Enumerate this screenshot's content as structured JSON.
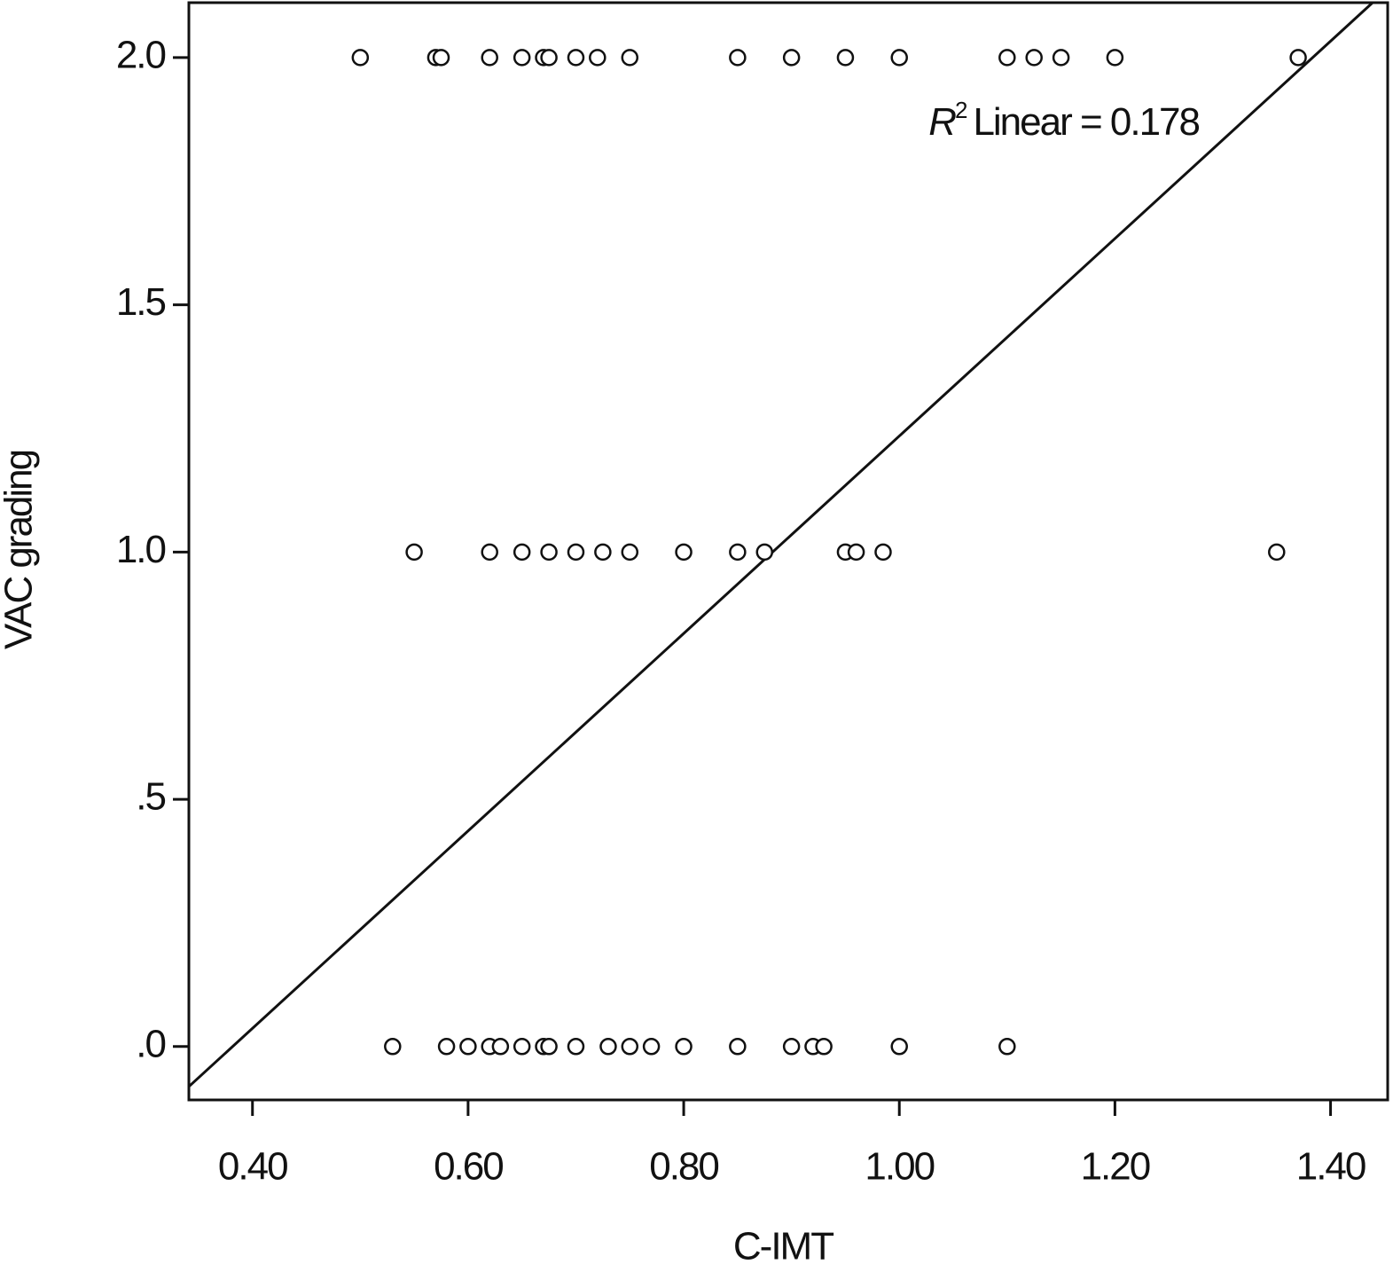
{
  "chart_data": {
    "type": "scatter",
    "x_label": "C-IMT",
    "y_label": "VAC grading",
    "annotation": {
      "symbol": "R",
      "superscript": "2",
      "text": "Linear = 0.178"
    },
    "color": "#111111",
    "grid": false,
    "xlim": [
      0.341,
      1.453
    ],
    "ylim": [
      -0.108,
      2.111
    ],
    "xticks": [
      {
        "value": 0.4,
        "label": "0.40"
      },
      {
        "value": 0.6,
        "label": "0.60"
      },
      {
        "value": 0.8,
        "label": "0.80"
      },
      {
        "value": 1.0,
        "label": "1.00"
      },
      {
        "value": 1.2,
        "label": "1.20"
      },
      {
        "value": 1.4,
        "label": "1.40"
      }
    ],
    "yticks": [
      {
        "value": 0,
        "label": ".0"
      },
      {
        "value": 0.5,
        "label": ".5"
      },
      {
        "value": 1.0,
        "label": "1.0"
      },
      {
        "value": 1.5,
        "label": "1.5"
      },
      {
        "value": 2.0,
        "label": "2.0"
      }
    ],
    "x": [
      0.5,
      0.57,
      0.575,
      0.62,
      0.65,
      0.67,
      0.675,
      0.7,
      0.72,
      0.75,
      0.85,
      0.9,
      0.95,
      1.0,
      1.1,
      1.125,
      1.15,
      1.2,
      1.37,
      0.55,
      0.62,
      0.65,
      0.675,
      0.7,
      0.725,
      0.75,
      0.8,
      0.85,
      0.875,
      0.95,
      0.96,
      0.985,
      1.35,
      0.53,
      0.58,
      0.6,
      0.62,
      0.63,
      0.65,
      0.67,
      0.675,
      0.7,
      0.73,
      0.75,
      0.77,
      0.8,
      0.85,
      0.9,
      0.92,
      0.93,
      1.0,
      1.1
    ],
    "y": [
      2,
      2,
      2,
      2,
      2,
      2,
      2,
      2,
      2,
      2,
      2,
      2,
      2,
      2,
      2,
      2,
      2,
      2,
      2,
      1,
      1,
      1,
      1,
      1,
      1,
      1,
      1,
      1,
      1,
      1,
      1,
      1,
      1,
      0,
      0,
      0,
      0,
      0,
      0,
      0,
      0,
      0,
      0,
      0,
      0,
      0,
      0,
      0,
      0,
      0,
      0,
      0
    ],
    "fit_line": {
      "x": [
        0.341,
        1.439
      ],
      "y": [
        -0.081,
        2.111
      ]
    }
  }
}
